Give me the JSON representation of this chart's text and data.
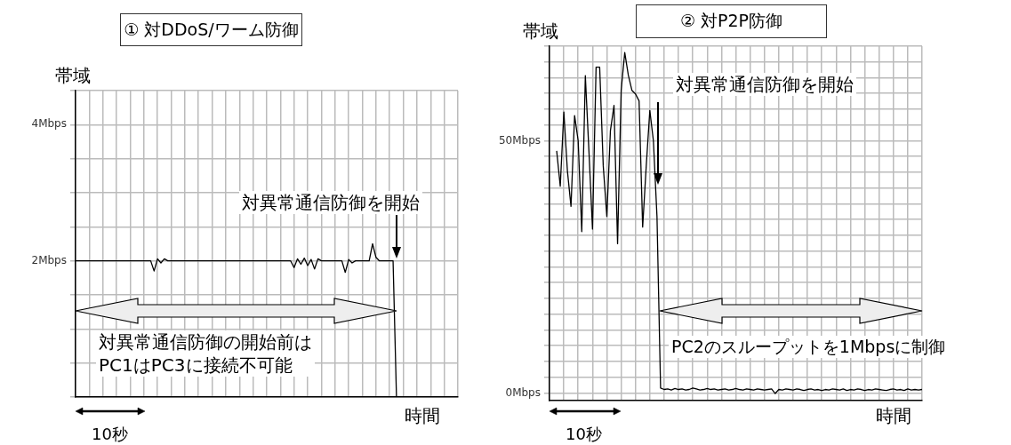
{
  "chart_data": [
    {
      "type": "line",
      "title": "① 対DDoS/ワーム防御",
      "xlabel": "時間",
      "ylabel": "帯域",
      "annotations": [
        "対異常通信防御を開始",
        "対異常通信防御の開始前は\nPC1はPC3に接続不可能",
        "10秒"
      ],
      "categories": [
        null,
        null,
        null,
        null,
        null,
        null,
        null,
        null,
        null,
        null,
        null,
        null,
        null,
        null,
        null,
        null,
        null,
        null,
        null,
        null,
        null,
        null,
        null,
        null,
        null,
        null,
        null,
        null,
        null,
        null,
        null,
        null,
        null,
        null,
        null,
        null,
        null,
        null,
        null,
        null,
        null,
        null,
        null,
        null,
        null,
        null,
        null,
        null,
        null,
        null,
        null,
        null,
        null,
        null,
        null,
        null,
        null,
        null,
        null,
        null,
        null,
        null,
        null,
        null,
        null,
        null,
        null,
        null,
        null,
        null,
        null,
        null,
        null,
        null,
        null,
        null,
        null,
        null,
        null,
        null,
        null,
        null,
        null,
        null,
        null,
        null,
        null,
        null,
        null,
        null,
        null,
        null,
        null,
        null,
        null,
        null,
        null,
        null,
        null,
        null,
        null,
        null,
        null,
        null,
        null,
        null,
        null,
        null,
        null,
        null,
        null,
        null,
        null
      ],
      "series": [
        {
          "color": "#000000",
          "values": [
            2,
            2,
            2,
            2,
            2,
            2,
            2,
            2,
            2,
            2,
            2,
            2,
            2,
            2,
            2,
            2,
            2,
            2,
            2,
            2,
            2,
            2,
            2,
            1.85,
            2.03,
            1.97,
            2.03,
            2,
            2,
            2,
            2,
            2,
            2,
            2,
            2,
            2,
            2,
            2,
            2,
            2,
            2,
            2,
            2,
            2,
            2,
            2,
            2,
            2,
            2,
            2,
            2,
            2,
            2,
            2,
            2,
            2,
            2,
            2,
            2,
            2,
            2,
            2,
            2,
            2,
            1.9,
            2.03,
            1.95,
            2.04,
            1.93,
            2.02,
            1.88,
            2.03,
            2,
            2,
            2,
            2,
            2,
            2,
            2,
            1.83,
            2.02,
            1.97,
            2,
            2,
            2,
            2,
            2,
            2.25,
            2.05,
            2,
            2,
            2,
            2,
            2,
            0,
            0,
            0,
            0,
            0,
            0,
            0,
            0,
            0,
            0,
            0,
            0,
            0,
            0,
            0,
            0,
            0,
            0,
            0
          ]
        }
      ],
      "ylim": [
        0,
        4.5
      ],
      "yticks": [
        {
          "value": 0,
          "label": null
        },
        {
          "value": 0.5,
          "label": null
        },
        {
          "value": 1,
          "label": null
        },
        {
          "value": 1.5,
          "label": null
        },
        {
          "value": 2,
          "label": "2Mbps"
        },
        {
          "value": 2.5,
          "label": null
        },
        {
          "value": 3,
          "label": null
        },
        {
          "value": 3.5,
          "label": null
        },
        {
          "value": 4,
          "label": "4Mbps"
        },
        {
          "value": 4.5,
          "label": null
        }
      ],
      "tick_labels": "y",
      "grid": true,
      "legend": false,
      "marker": "none",
      "line_style": "solid"
    },
    {
      "type": "line",
      "title": "② 対P2P防御",
      "xlabel": "時間",
      "ylabel": "帯域",
      "annotations": [
        "対異常通信防御を開始",
        "PC2のスループットを1Mbpsに制御",
        "10秒"
      ],
      "categories": [
        null,
        null,
        null,
        null,
        null,
        null,
        null,
        null,
        null,
        null,
        null,
        null,
        null,
        null,
        null,
        null,
        null,
        null,
        null,
        null,
        null,
        null,
        null,
        null,
        null,
        null,
        null,
        null,
        null,
        null,
        null,
        null,
        null,
        null,
        null,
        null,
        null,
        null,
        null,
        null,
        null,
        null,
        null,
        null,
        null,
        null,
        null,
        null,
        null,
        null,
        null,
        null,
        null,
        null,
        null,
        null,
        null,
        null,
        null,
        null,
        null,
        null,
        null,
        null,
        null,
        null,
        null,
        null,
        null,
        null,
        null,
        null,
        null,
        null,
        null,
        null,
        null,
        null,
        null,
        null,
        null,
        null,
        null,
        null,
        null,
        null,
        null,
        null,
        null,
        null,
        null,
        null,
        null,
        null,
        null,
        null,
        null,
        null,
        null,
        null,
        null,
        null,
        null,
        null,
        null
      ],
      "series": [
        {
          "color": "#000000",
          "values": [
            null,
            null,
            48,
            41,
            55.7,
            44,
            37,
            55,
            50,
            32,
            62.9,
            48,
            32.5,
            64.6,
            64.6,
            45,
            35,
            52,
            57,
            29.6,
            60,
            67.5,
            63,
            60,
            59.3,
            57.9,
            32.9,
            45,
            56,
            50,
            35,
            1,
            0.7,
            0.8,
            0.6,
            0.9,
            0.7,
            0.8,
            0.6,
            0.7,
            1,
            0.8,
            0.6,
            0.7,
            0.9,
            0.7,
            0.8,
            0.6,
            0.7,
            0.8,
            0.6,
            0.7,
            0.9,
            0.7,
            0.6,
            0.8,
            0.7,
            0.6,
            0.8,
            0.7,
            0.6,
            0.7,
            0.8,
            -0.1,
            0.7,
            0.6,
            0.8,
            0.7,
            0.6,
            0.8,
            0.7,
            0.5,
            0.7,
            0.8,
            0.6,
            0.7,
            0.5,
            0.7,
            0.6,
            0.8,
            0.7,
            0.6,
            0.8,
            0.5,
            0.7,
            0.6,
            0.8,
            0.7,
            0.5,
            0.7,
            0.6,
            0.8,
            0.7,
            0.6,
            0.5,
            0.7,
            0.8,
            0.6,
            0.7,
            0.5,
            0.8,
            0.6,
            0.7,
            0.6,
            0.7
          ]
        }
      ],
      "ylim": [
        -1.5,
        68.75
      ],
      "yticks": [
        {
          "value": 0,
          "label": "0Mbps"
        },
        {
          "value": 3.125,
          "label": null
        },
        {
          "value": 6.25,
          "label": null
        },
        {
          "value": 9.375,
          "label": null
        },
        {
          "value": 12.5,
          "label": null
        },
        {
          "value": 15.625,
          "label": null
        },
        {
          "value": 18.75,
          "label": null
        },
        {
          "value": 21.875,
          "label": null
        },
        {
          "value": 25,
          "label": null
        },
        {
          "value": 28.125,
          "label": null
        },
        {
          "value": 31.25,
          "label": null
        },
        {
          "value": 34.375,
          "label": null
        },
        {
          "value": 37.5,
          "label": null
        },
        {
          "value": 40.625,
          "label": null
        },
        {
          "value": 43.75,
          "label": null
        },
        {
          "value": 46.875,
          "label": null
        },
        {
          "value": 50,
          "label": "50Mbps"
        },
        {
          "value": 53.125,
          "label": null
        },
        {
          "value": 56.25,
          "label": null
        },
        {
          "value": 59.375,
          "label": null
        },
        {
          "value": 62.5,
          "label": null
        },
        {
          "value": 65.625,
          "label": null
        },
        {
          "value": 68.75,
          "label": null
        }
      ],
      "tick_labels": "y",
      "grid": true,
      "legend": false,
      "marker": "none",
      "line_style": "solid"
    }
  ]
}
